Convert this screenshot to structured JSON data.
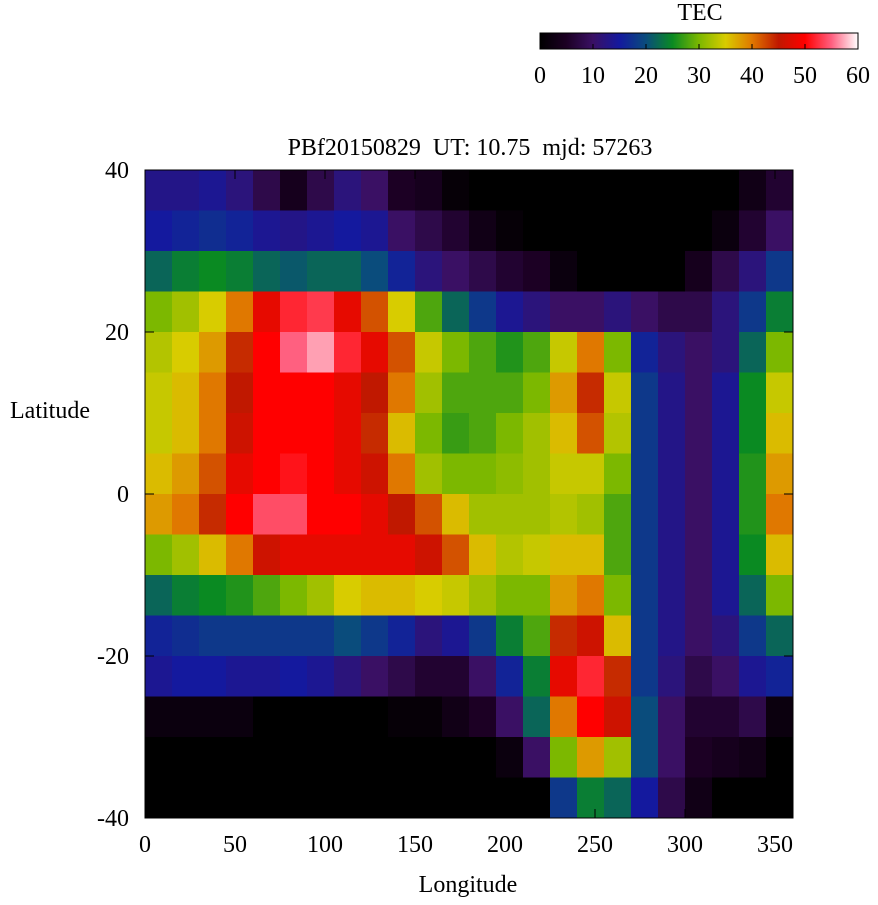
{
  "chart_data": {
    "type": "heatmap",
    "title": "PBf20150829  UT: 10.75  mjd: 57263",
    "xlabel": "Longitude",
    "ylabel": "Latitude",
    "colorbar_label": "TEC",
    "xlim": [
      0,
      360
    ],
    "ylim": [
      -40,
      40
    ],
    "xticks": [
      0,
      50,
      100,
      150,
      200,
      250,
      300,
      350
    ],
    "yticks": [
      -40,
      -20,
      0,
      20,
      40
    ],
    "cblim": [
      0,
      60
    ],
    "cbticks": [
      0,
      10,
      20,
      30,
      40,
      50,
      60
    ],
    "colormap": [
      "#000000",
      "#1c0024",
      "#3a1064",
      "#14199e",
      "#0a4c7c",
      "#0a8a22",
      "#7cb800",
      "#d8cc00",
      "#e07800",
      "#c01800",
      "#ff0000",
      "#ff6080",
      "#ffffff"
    ],
    "x": [
      7.5,
      22.5,
      37.5,
      52.5,
      67.5,
      82.5,
      97.5,
      112.5,
      127.5,
      142.5,
      157.5,
      172.5,
      187.5,
      202.5,
      217.5,
      232.5,
      247.5,
      262.5,
      277.5,
      292.5,
      307.5,
      322.5,
      337.5,
      352.5
    ],
    "y": [
      37.5,
      32.5,
      27.5,
      22.5,
      17.5,
      12.5,
      7.5,
      2.5,
      -2.5,
      -7.5,
      -12.5,
      -17.5,
      -22.5,
      -27.5,
      -32.5,
      -37.5
    ],
    "z": [
      [
        13,
        13,
        14,
        12,
        8,
        4,
        8,
        12,
        10,
        5,
        4,
        1,
        0,
        0,
        0,
        0,
        0,
        0,
        0,
        0,
        0,
        0,
        3,
        6
      ],
      [
        15,
        16,
        17,
        16,
        14,
        13,
        14,
        15,
        14,
        10,
        8,
        6,
        3,
        1,
        0,
        0,
        0,
        0,
        0,
        0,
        0,
        2,
        6,
        10
      ],
      [
        22,
        24,
        25,
        24,
        22,
        21,
        22,
        22,
        20,
        16,
        12,
        10,
        8,
        6,
        5,
        2,
        0,
        0,
        0,
        0,
        4,
        8,
        12,
        18
      ],
      [
        30,
        32,
        35,
        40,
        48,
        52,
        53,
        48,
        42,
        35,
        28,
        22,
        18,
        14,
        12,
        10,
        10,
        12,
        10,
        8,
        8,
        12,
        18,
        24
      ],
      [
        33,
        35,
        38,
        44,
        50,
        55,
        57,
        52,
        48,
        42,
        34,
        30,
        28,
        26,
        28,
        34,
        40,
        30,
        16,
        12,
        10,
        12,
        22,
        30
      ],
      [
        34,
        36,
        40,
        45,
        50,
        50,
        50,
        48,
        45,
        40,
        32,
        28,
        28,
        28,
        30,
        38,
        44,
        34,
        18,
        13,
        10,
        14,
        25,
        34
      ],
      [
        34,
        36,
        40,
        46,
        50,
        50,
        50,
        48,
        44,
        36,
        30,
        27,
        28,
        30,
        32,
        36,
        42,
        33,
        18,
        13,
        10,
        14,
        25,
        36
      ],
      [
        36,
        38,
        42,
        48,
        50,
        51,
        50,
        48,
        46,
        40,
        32,
        30,
        30,
        31,
        32,
        34,
        34,
        30,
        18,
        13,
        10,
        14,
        26,
        38
      ],
      [
        38,
        40,
        44,
        50,
        54,
        54,
        50,
        50,
        48,
        45,
        42,
        36,
        32,
        32,
        32,
        33,
        32,
        28,
        18,
        13,
        10,
        14,
        26,
        40
      ],
      [
        30,
        32,
        36,
        40,
        46,
        48,
        48,
        48,
        48,
        48,
        46,
        42,
        36,
        33,
        34,
        36,
        36,
        28,
        18,
        13,
        10,
        14,
        25,
        36
      ],
      [
        22,
        24,
        25,
        26,
        28,
        30,
        32,
        35,
        36,
        36,
        35,
        34,
        32,
        30,
        30,
        38,
        40,
        30,
        18,
        13,
        10,
        14,
        22,
        30
      ],
      [
        16,
        17,
        18,
        18,
        18,
        18,
        18,
        20,
        18,
        16,
        12,
        14,
        18,
        24,
        28,
        44,
        46,
        36,
        18,
        13,
        10,
        12,
        18,
        22
      ],
      [
        14,
        15,
        15,
        14,
        14,
        15,
        14,
        12,
        10,
        8,
        6,
        6,
        10,
        16,
        24,
        48,
        52,
        44,
        18,
        12,
        8,
        10,
        14,
        16
      ],
      [
        2,
        2,
        2,
        2,
        0,
        0,
        0,
        0,
        0,
        1,
        1,
        3,
        5,
        10,
        22,
        40,
        50,
        46,
        20,
        10,
        6,
        6,
        8,
        2
      ],
      [
        0,
        0,
        0,
        0,
        0,
        0,
        0,
        0,
        0,
        0,
        0,
        0,
        0,
        2,
        10,
        30,
        38,
        32,
        20,
        10,
        5,
        4,
        3,
        0
      ],
      [
        0,
        0,
        0,
        0,
        0,
        0,
        0,
        0,
        0,
        0,
        0,
        0,
        0,
        0,
        0,
        18,
        24,
        22,
        15,
        8,
        3,
        0,
        0,
        0
      ]
    ]
  }
}
